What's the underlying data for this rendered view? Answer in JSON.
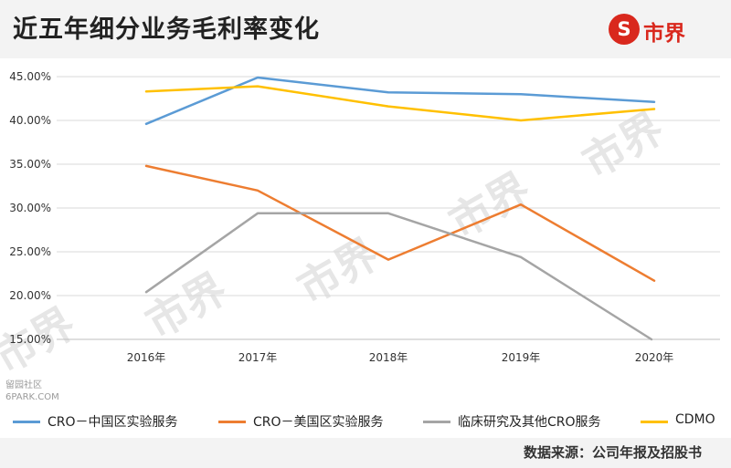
{
  "title": "近五年细分业务毛利率变化",
  "logo": {
    "glyph": "S",
    "text": "市界"
  },
  "watermark": "市界",
  "side_watermark": {
    "line1": "留园社区",
    "line2": "6PARK.COM"
  },
  "source": "数据来源：公司年报及招股书",
  "chart_data": {
    "type": "line",
    "title": "近五年细分业务毛利率变化",
    "x": [
      "2016年",
      "2017年",
      "2018年",
      "2019年",
      "2020年"
    ],
    "ylim": [
      15,
      45
    ],
    "yticks": [
      15,
      20,
      25,
      30,
      35,
      40,
      45
    ],
    "ytick_labels": [
      "15.00%",
      "20.00%",
      "25.00%",
      "30.00%",
      "35.00%",
      "40.00%",
      "45.00%"
    ],
    "grid": true,
    "legend_position": "bottom",
    "series": [
      {
        "name": "CRO－中国区实验服务",
        "color": "#5b9bd5",
        "values": [
          39.6,
          44.9,
          43.2,
          43.0,
          42.1
        ]
      },
      {
        "name": "CRO－美国区实验服务",
        "color": "#ed7d31",
        "values": [
          34.8,
          32.0,
          24.1,
          30.4,
          21.7
        ]
      },
      {
        "name": "临床研究及其他CRO服务",
        "color": "#a5a5a5",
        "values": [
          20.4,
          29.4,
          29.4,
          24.4,
          14.8
        ]
      },
      {
        "name": "CDMO",
        "color": "#ffc000",
        "values": [
          43.3,
          43.9,
          41.6,
          40.0,
          41.3
        ]
      }
    ]
  }
}
